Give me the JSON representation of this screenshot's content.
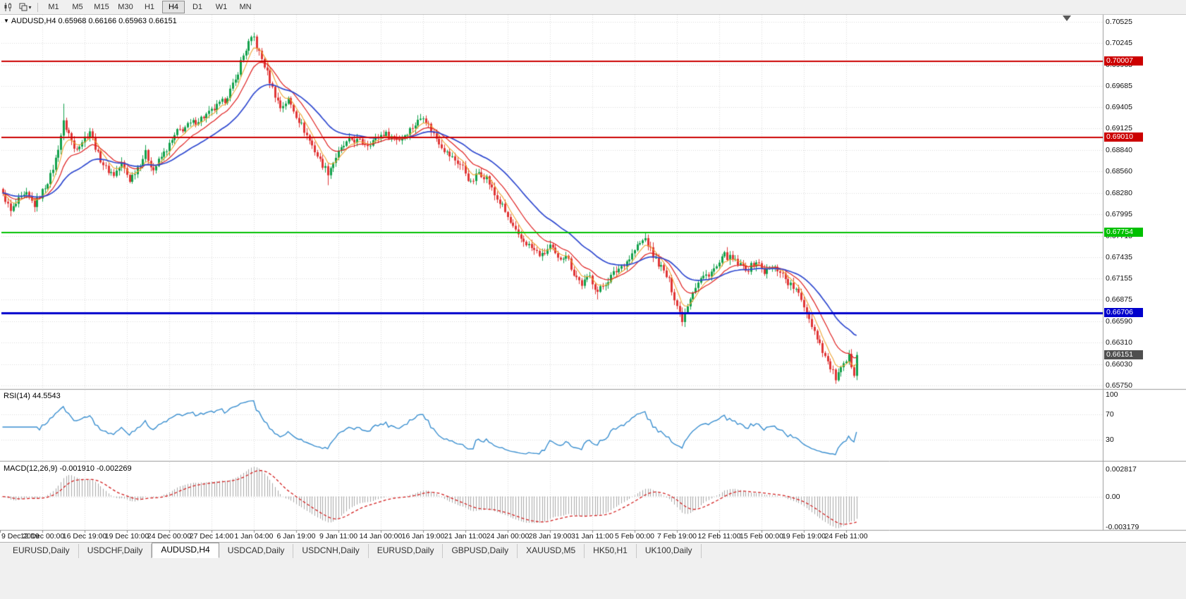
{
  "toolbar": {
    "icons": [
      "candlestick-chart-icon",
      "chart-template-dropdown-icon"
    ],
    "timeframes": [
      "M1",
      "M5",
      "M15",
      "M30",
      "H1",
      "H4",
      "D1",
      "W1",
      "MN"
    ],
    "active_timeframe": "H4"
  },
  "chart": {
    "header_text": "AUDUSD,H4 0.65968 0.66166 0.65963 0.66151"
  },
  "chart_data": {
    "type": "candlestick",
    "symbol": "AUDUSD",
    "timeframe": "H4",
    "ohlc_last": {
      "open": 0.65968,
      "high": 0.66166,
      "low": 0.65963,
      "close": 0.66151
    },
    "bars": 324,
    "axis_range": {
      "top": 0.70618,
      "bottom": 0.65713
    },
    "price_ticks": [
      "0.70525",
      "0.70245",
      "0.69965",
      "0.69685",
      "0.69405",
      "0.69125",
      "0.68840",
      "0.68560",
      "0.68280",
      "0.67995",
      "0.67715",
      "0.67435",
      "0.67155",
      "0.66875",
      "0.66590",
      "0.66310",
      "0.66030",
      "0.65750"
    ],
    "time_labels": [
      "9 Dec 2019",
      "12 Dec 00:00",
      "16 Dec 19:00",
      "19 Dec 10:00",
      "24 Dec 00:00",
      "27 Dec 14:00",
      "1 Jan 04:00",
      "6 Jan 19:00",
      "9 Jan 11:00",
      "14 Jan 00:00",
      "16 Jan 19:00",
      "21 Jan 11:00",
      "24 Jan 00:00",
      "28 Jan 19:00",
      "31 Jan 11:00",
      "5 Feb 00:00",
      "7 Feb 19:00",
      "12 Feb 11:00",
      "15 Feb 00:00",
      "19 Feb 19:00",
      "24 Feb 11:00"
    ],
    "close_waypoints": [
      [
        0,
        0.6828
      ],
      [
        3,
        0.6803
      ],
      [
        6,
        0.6818
      ],
      [
        9,
        0.6825
      ],
      [
        12,
        0.6812
      ],
      [
        15,
        0.683
      ],
      [
        18,
        0.685
      ],
      [
        20,
        0.6872
      ],
      [
        23,
        0.692
      ],
      [
        25,
        0.6906
      ],
      [
        27,
        0.6886
      ],
      [
        30,
        0.6896
      ],
      [
        33,
        0.691
      ],
      [
        36,
        0.6878
      ],
      [
        39,
        0.686
      ],
      [
        42,
        0.6852
      ],
      [
        45,
        0.6866
      ],
      [
        48,
        0.6845
      ],
      [
        51,
        0.6862
      ],
      [
        54,
        0.688
      ],
      [
        57,
        0.6858
      ],
      [
        60,
        0.6875
      ],
      [
        64,
        0.6896
      ],
      [
        66,
        0.6908
      ],
      [
        72,
        0.692
      ],
      [
        78,
        0.6932
      ],
      [
        84,
        0.695
      ],
      [
        88,
        0.6975
      ],
      [
        90,
        0.7
      ],
      [
        93,
        0.7025
      ],
      [
        95,
        0.7032
      ],
      [
        96,
        0.702
      ],
      [
        99,
        0.6995
      ],
      [
        102,
        0.6965
      ],
      [
        105,
        0.694
      ],
      [
        108,
        0.695
      ],
      [
        111,
        0.693
      ],
      [
        114,
        0.691
      ],
      [
        117,
        0.689
      ],
      [
        120,
        0.687
      ],
      [
        123,
        0.6855
      ],
      [
        126,
        0.6875
      ],
      [
        129,
        0.689
      ],
      [
        132,
        0.6898
      ],
      [
        138,
        0.6892
      ],
      [
        144,
        0.6906
      ],
      [
        150,
        0.6898
      ],
      [
        156,
        0.6918
      ],
      [
        159,
        0.693
      ],
      [
        162,
        0.691
      ],
      [
        165,
        0.6895
      ],
      [
        168,
        0.688
      ],
      [
        174,
        0.6862
      ],
      [
        177,
        0.684
      ],
      [
        180,
        0.6855
      ],
      [
        183,
        0.6848
      ],
      [
        186,
        0.6825
      ],
      [
        189,
        0.681
      ],
      [
        192,
        0.6788
      ],
      [
        195,
        0.677
      ],
      [
        198,
        0.6762
      ],
      [
        201,
        0.6752
      ],
      [
        204,
        0.6745
      ],
      [
        207,
        0.6758
      ],
      [
        210,
        0.674
      ],
      [
        213,
        0.6748
      ],
      [
        216,
        0.6722
      ],
      [
        219,
        0.6708
      ],
      [
        222,
        0.6718
      ],
      [
        225,
        0.6698
      ],
      [
        228,
        0.671
      ],
      [
        231,
        0.6722
      ],
      [
        234,
        0.6732
      ],
      [
        237,
        0.6742
      ],
      [
        240,
        0.6758
      ],
      [
        243,
        0.6768
      ],
      [
        246,
        0.6745
      ],
      [
        249,
        0.673
      ],
      [
        252,
        0.6712
      ],
      [
        255,
        0.668
      ],
      [
        257,
        0.6662
      ],
      [
        259,
        0.6682
      ],
      [
        261,
        0.67
      ],
      [
        264,
        0.6715
      ],
      [
        267,
        0.6722
      ],
      [
        270,
        0.673
      ],
      [
        273,
        0.6746
      ],
      [
        276,
        0.674
      ],
      [
        279,
        0.6732
      ],
      [
        282,
        0.6728
      ],
      [
        285,
        0.6738
      ],
      [
        288,
        0.6724
      ],
      [
        291,
        0.673
      ],
      [
        294,
        0.6726
      ],
      [
        297,
        0.671
      ],
      [
        300,
        0.67
      ],
      [
        303,
        0.668
      ],
      [
        306,
        0.6655
      ],
      [
        309,
        0.663
      ],
      [
        312,
        0.6605
      ],
      [
        315,
        0.6585
      ],
      [
        318,
        0.66
      ],
      [
        320,
        0.6612
      ],
      [
        322,
        0.6592
      ],
      [
        323,
        0.6615
      ]
    ],
    "wick_overrides": [
      {
        "bar": 3,
        "low": 0.6797
      },
      {
        "bar": 23,
        "high": 0.6945
      },
      {
        "bar": 95,
        "high": 0.7038
      },
      {
        "bar": 123,
        "low": 0.6838
      },
      {
        "bar": 225,
        "low": 0.6688
      },
      {
        "bar": 243,
        "high": 0.6776
      },
      {
        "bar": 257,
        "low": 0.6653
      },
      {
        "bar": 315,
        "low": 0.6578
      }
    ],
    "hlines": [
      {
        "label": "0.70007",
        "value": 0.70007,
        "color": "#cc0000",
        "width": 2
      },
      {
        "label": "0.69010",
        "value": 0.6901,
        "color": "#cc0000",
        "width": 2
      },
      {
        "label": "0.67754",
        "value": 0.67754,
        "color": "#00c000",
        "width": 2
      },
      {
        "label": "0.66706",
        "value": 0.66706,
        "color": "#0000cc",
        "width": 3
      }
    ],
    "last_price": {
      "label": "0.66151",
      "value": 0.66151,
      "badge_color": "#4f4f4f"
    },
    "moving_averages": [
      {
        "name": "fast-ma",
        "period": 6,
        "color": "#efa431"
      },
      {
        "name": "mid-ma",
        "period": 14,
        "color": "#e02020"
      },
      {
        "name": "slow-ma",
        "period": 32,
        "color": "#2f49d0"
      }
    ],
    "colors": {
      "up": "#12a14b",
      "down": "#e03535",
      "grid": "#dadada",
      "border": "#9a9a9a",
      "background": "#ffffff"
    },
    "indicators": [
      {
        "name": "RSI",
        "title": "RSI(14) 44.5543",
        "period": 14,
        "levels": [
          100,
          70,
          30
        ],
        "level_labels": [
          "100",
          "70",
          "30"
        ],
        "color": "#3a8fd0"
      },
      {
        "name": "MACD",
        "title": "MACD(12,26,9) -0.001910 -0.002269",
        "params": [
          12,
          26,
          9
        ],
        "scale_labels": [
          "0.002817",
          "0.00",
          "-0.003179"
        ],
        "scale_values": [
          0.002817,
          0,
          -0.003179
        ],
        "hist_color": "#a8a8a8",
        "signal_color": "#d42020"
      }
    ]
  },
  "tabs": {
    "items": [
      "EURUSD,Daily",
      "USDCHF,Daily",
      "AUDUSD,H4",
      "USDCAD,Daily",
      "USDCNH,Daily",
      "EURUSD,Daily",
      "GBPUSD,Daily",
      "XAUUSD,M5",
      "HK50,H1",
      "UK100,Daily"
    ],
    "active_index": 2
  }
}
